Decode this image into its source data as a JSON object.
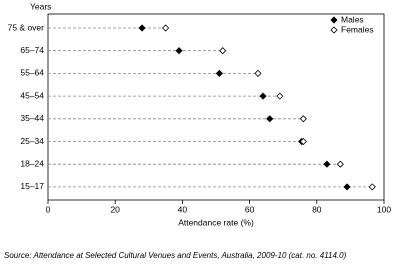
{
  "chart_data": {
    "type": "dot",
    "y_axis_title": "Years",
    "x_axis_title": "Attendance rate (%)",
    "source": "Source: Attendance at Selected Cultural Venues and Events, Australia, 2009-10 (cat. no. 4114.0)",
    "categories": [
      "75 & over",
      "65–74",
      "55–64",
      "45–54",
      "35–44",
      "25–34",
      "18–24",
      "15–17"
    ],
    "series": [
      {
        "name": "Males",
        "color": "#000000",
        "values": [
          28,
          39,
          51,
          64,
          66,
          75.5,
          83,
          89
        ]
      },
      {
        "name": "Females",
        "color": "#ffffff",
        "values": [
          35,
          52,
          62.5,
          69,
          76,
          76,
          87,
          96.5
        ]
      }
    ],
    "xlim": [
      0,
      100
    ],
    "xticks": [
      0,
      20,
      40,
      60,
      80,
      100
    ],
    "legend": "top-right"
  }
}
